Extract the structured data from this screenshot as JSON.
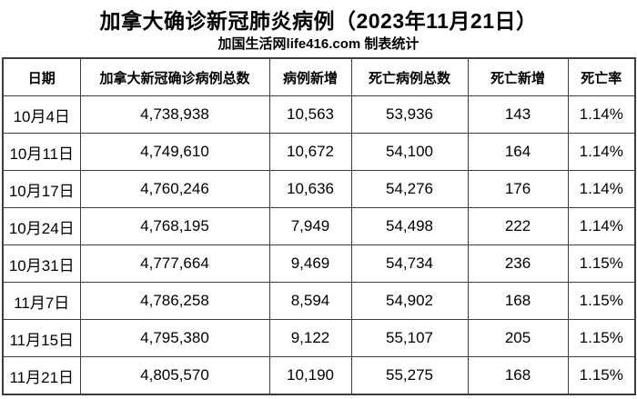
{
  "title": "加拿大确诊新冠肺炎病例（2023年11月21日）",
  "subtitle": "加国生活网life416.com 制表统计",
  "colors": {
    "background": "#ffffff",
    "text": "#000000",
    "border": "#3d3d3d"
  },
  "chart_data": {
    "type": "table",
    "title": "加拿大确诊新冠肺炎病例（2023年11月21日）",
    "subtitle": "加国生活网life416.com 制表统计",
    "columns": [
      "日期",
      "加拿大新冠确诊病例总数",
      "病例新增",
      "死亡病例总数",
      "死亡新增",
      "死亡率"
    ],
    "rows": [
      [
        "10月4日",
        "4,738,938",
        "10,563",
        "53,936",
        "143",
        "1.14%"
      ],
      [
        "10月11日",
        "4,749,610",
        "10,672",
        "54,100",
        "164",
        "1.14%"
      ],
      [
        "10月17日",
        "4,760,246",
        "10,636",
        "54,276",
        "176",
        "1.14%"
      ],
      [
        "10月24日",
        "4,768,195",
        "7,949",
        "54,498",
        "222",
        "1.14%"
      ],
      [
        "10月31日",
        "4,777,664",
        "9,469",
        "54,734",
        "236",
        "1.15%"
      ],
      [
        "11月7日",
        "4,786,258",
        "8,594",
        "54,902",
        "168",
        "1.15%"
      ],
      [
        "11月15日",
        "4,795,380",
        "9,122",
        "55,107",
        "205",
        "1.15%"
      ],
      [
        "11月21日",
        "4,805,570",
        "10,190",
        "55,275",
        "168",
        "1.15%"
      ]
    ]
  }
}
